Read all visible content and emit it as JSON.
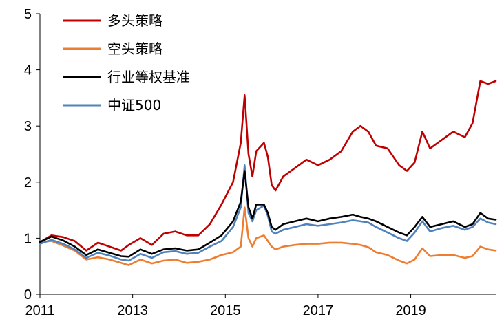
{
  "chart_data": {
    "type": "line",
    "x_ticks": [
      "2011",
      "2013",
      "2015",
      "2017",
      "2019"
    ],
    "y_ticks": [
      "0",
      "1",
      "2",
      "3",
      "4",
      "5"
    ],
    "xlim": [
      "2011-01",
      "2020-11"
    ],
    "ylim": [
      0,
      5
    ],
    "grid": false,
    "legend_position": "top-left",
    "series": [
      {
        "name": "多头策略",
        "color": "#C00000",
        "x": [
          "2011-01",
          "2011-04",
          "2011-07",
          "2011-10",
          "2012-01",
          "2012-04",
          "2012-07",
          "2012-10",
          "2012-12",
          "2013-03",
          "2013-06",
          "2013-09",
          "2013-12",
          "2014-03",
          "2014-06",
          "2014-09",
          "2014-12",
          "2015-03",
          "2015-05",
          "2015-06",
          "2015-07",
          "2015-08",
          "2015-09",
          "2015-11",
          "2015-12",
          "2016-01",
          "2016-02",
          "2016-04",
          "2016-07",
          "2016-10",
          "2017-01",
          "2017-04",
          "2017-07",
          "2017-10",
          "2017-12",
          "2018-02",
          "2018-04",
          "2018-07",
          "2018-10",
          "2018-12",
          "2019-02",
          "2019-04",
          "2019-06",
          "2019-09",
          "2019-12",
          "2020-03",
          "2020-05",
          "2020-07",
          "2020-09",
          "2020-11"
        ],
        "values": [
          0.93,
          1.05,
          1.02,
          0.95,
          0.78,
          0.92,
          0.85,
          0.78,
          0.88,
          1.0,
          0.88,
          1.08,
          1.12,
          1.05,
          1.05,
          1.25,
          1.6,
          2.0,
          2.7,
          3.55,
          2.5,
          2.1,
          2.55,
          2.7,
          2.45,
          1.95,
          1.85,
          2.1,
          2.25,
          2.4,
          2.3,
          2.4,
          2.55,
          2.9,
          3.0,
          2.9,
          2.65,
          2.6,
          2.3,
          2.2,
          2.35,
          2.9,
          2.6,
          2.75,
          2.9,
          2.8,
          3.05,
          3.8,
          3.75,
          3.8
        ]
      },
      {
        "name": "空头策略",
        "color": "#ED7D31",
        "x": [
          "2011-01",
          "2011-04",
          "2011-07",
          "2011-10",
          "2012-01",
          "2012-04",
          "2012-07",
          "2012-10",
          "2012-12",
          "2013-03",
          "2013-06",
          "2013-09",
          "2013-12",
          "2014-03",
          "2014-06",
          "2014-09",
          "2014-12",
          "2015-03",
          "2015-05",
          "2015-06",
          "2015-07",
          "2015-08",
          "2015-09",
          "2015-11",
          "2015-12",
          "2016-01",
          "2016-02",
          "2016-04",
          "2016-07",
          "2016-10",
          "2017-01",
          "2017-04",
          "2017-07",
          "2017-10",
          "2017-12",
          "2018-02",
          "2018-04",
          "2018-07",
          "2018-10",
          "2018-12",
          "2019-02",
          "2019-04",
          "2019-06",
          "2019-09",
          "2019-12",
          "2020-03",
          "2020-05",
          "2020-07",
          "2020-09",
          "2020-11"
        ],
        "values": [
          0.93,
          0.95,
          0.87,
          0.78,
          0.62,
          0.66,
          0.62,
          0.56,
          0.52,
          0.62,
          0.55,
          0.6,
          0.62,
          0.56,
          0.58,
          0.62,
          0.7,
          0.75,
          0.85,
          1.55,
          1.0,
          0.85,
          1.0,
          1.05,
          0.95,
          0.85,
          0.8,
          0.85,
          0.88,
          0.9,
          0.9,
          0.92,
          0.92,
          0.9,
          0.88,
          0.84,
          0.75,
          0.7,
          0.6,
          0.55,
          0.62,
          0.82,
          0.68,
          0.7,
          0.7,
          0.65,
          0.68,
          0.85,
          0.8,
          0.78
        ]
      },
      {
        "name": "行业等权基准",
        "color": "#000000",
        "x": [
          "2011-01",
          "2011-04",
          "2011-07",
          "2011-10",
          "2012-01",
          "2012-04",
          "2012-07",
          "2012-10",
          "2012-12",
          "2013-03",
          "2013-06",
          "2013-09",
          "2013-12",
          "2014-03",
          "2014-06",
          "2014-09",
          "2014-12",
          "2015-03",
          "2015-05",
          "2015-06",
          "2015-07",
          "2015-08",
          "2015-09",
          "2015-11",
          "2015-12",
          "2016-01",
          "2016-02",
          "2016-04",
          "2016-07",
          "2016-10",
          "2017-01",
          "2017-04",
          "2017-07",
          "2017-10",
          "2017-12",
          "2018-02",
          "2018-04",
          "2018-07",
          "2018-10",
          "2018-12",
          "2019-02",
          "2019-04",
          "2019-06",
          "2019-09",
          "2019-12",
          "2020-03",
          "2020-05",
          "2020-07",
          "2020-09",
          "2020-11"
        ],
        "values": [
          0.93,
          1.03,
          0.96,
          0.85,
          0.7,
          0.8,
          0.74,
          0.68,
          0.67,
          0.8,
          0.72,
          0.8,
          0.82,
          0.78,
          0.8,
          0.92,
          1.05,
          1.3,
          1.65,
          2.2,
          1.55,
          1.35,
          1.6,
          1.6,
          1.45,
          1.2,
          1.15,
          1.25,
          1.3,
          1.35,
          1.3,
          1.35,
          1.38,
          1.42,
          1.38,
          1.35,
          1.3,
          1.2,
          1.1,
          1.05,
          1.2,
          1.38,
          1.2,
          1.25,
          1.3,
          1.2,
          1.25,
          1.45,
          1.35,
          1.33
        ]
      },
      {
        "name": "中证500",
        "color": "#4F81BD",
        "x": [
          "2011-01",
          "2011-04",
          "2011-07",
          "2011-10",
          "2012-01",
          "2012-04",
          "2012-07",
          "2012-10",
          "2012-12",
          "2013-03",
          "2013-06",
          "2013-09",
          "2013-12",
          "2014-03",
          "2014-06",
          "2014-09",
          "2014-12",
          "2015-03",
          "2015-05",
          "2015-06",
          "2015-07",
          "2015-08",
          "2015-09",
          "2015-11",
          "2015-12",
          "2016-01",
          "2016-02",
          "2016-04",
          "2016-07",
          "2016-10",
          "2017-01",
          "2017-04",
          "2017-07",
          "2017-10",
          "2017-12",
          "2018-02",
          "2018-04",
          "2018-07",
          "2018-10",
          "2018-12",
          "2019-02",
          "2019-04",
          "2019-06",
          "2019-09",
          "2019-12",
          "2020-03",
          "2020-05",
          "2020-07",
          "2020-09",
          "2020-11"
        ],
        "values": [
          0.9,
          0.97,
          0.9,
          0.8,
          0.65,
          0.74,
          0.69,
          0.62,
          0.6,
          0.72,
          0.65,
          0.75,
          0.77,
          0.72,
          0.74,
          0.85,
          0.95,
          1.2,
          1.55,
          2.3,
          1.45,
          1.3,
          1.5,
          1.58,
          1.4,
          1.12,
          1.08,
          1.15,
          1.2,
          1.25,
          1.22,
          1.25,
          1.28,
          1.32,
          1.3,
          1.28,
          1.2,
          1.1,
          1.0,
          0.95,
          1.1,
          1.3,
          1.12,
          1.18,
          1.22,
          1.15,
          1.2,
          1.35,
          1.28,
          1.25
        ]
      }
    ]
  }
}
